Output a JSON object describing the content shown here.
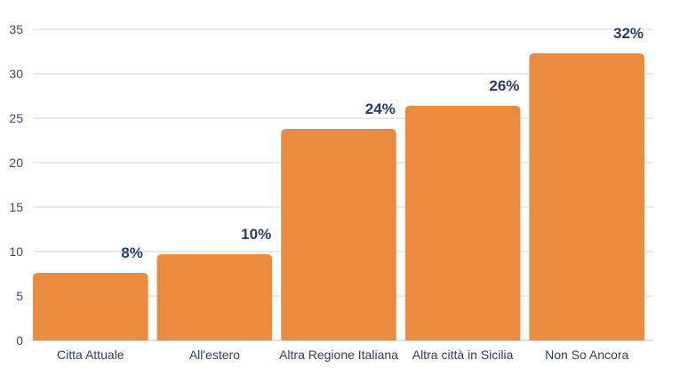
{
  "chart_data": {
    "type": "bar",
    "categories": [
      "Citta Attuale",
      "All'estero",
      "Altra Regione Italiana",
      "Altra città in Sicilia",
      "Non So Ancora"
    ],
    "values": [
      7.6,
      9.7,
      23.8,
      26.4,
      32.3
    ],
    "data_labels": [
      "8%",
      "10%",
      "24%",
      "26%",
      "32%"
    ],
    "yticks": [
      "0",
      "5",
      "10",
      "15",
      "20",
      "25",
      "30",
      "35"
    ],
    "ylim": [
      0,
      35
    ],
    "grid": true,
    "title": "",
    "xlabel": "",
    "ylabel": "",
    "bar_color": "#ea8b3f"
  }
}
